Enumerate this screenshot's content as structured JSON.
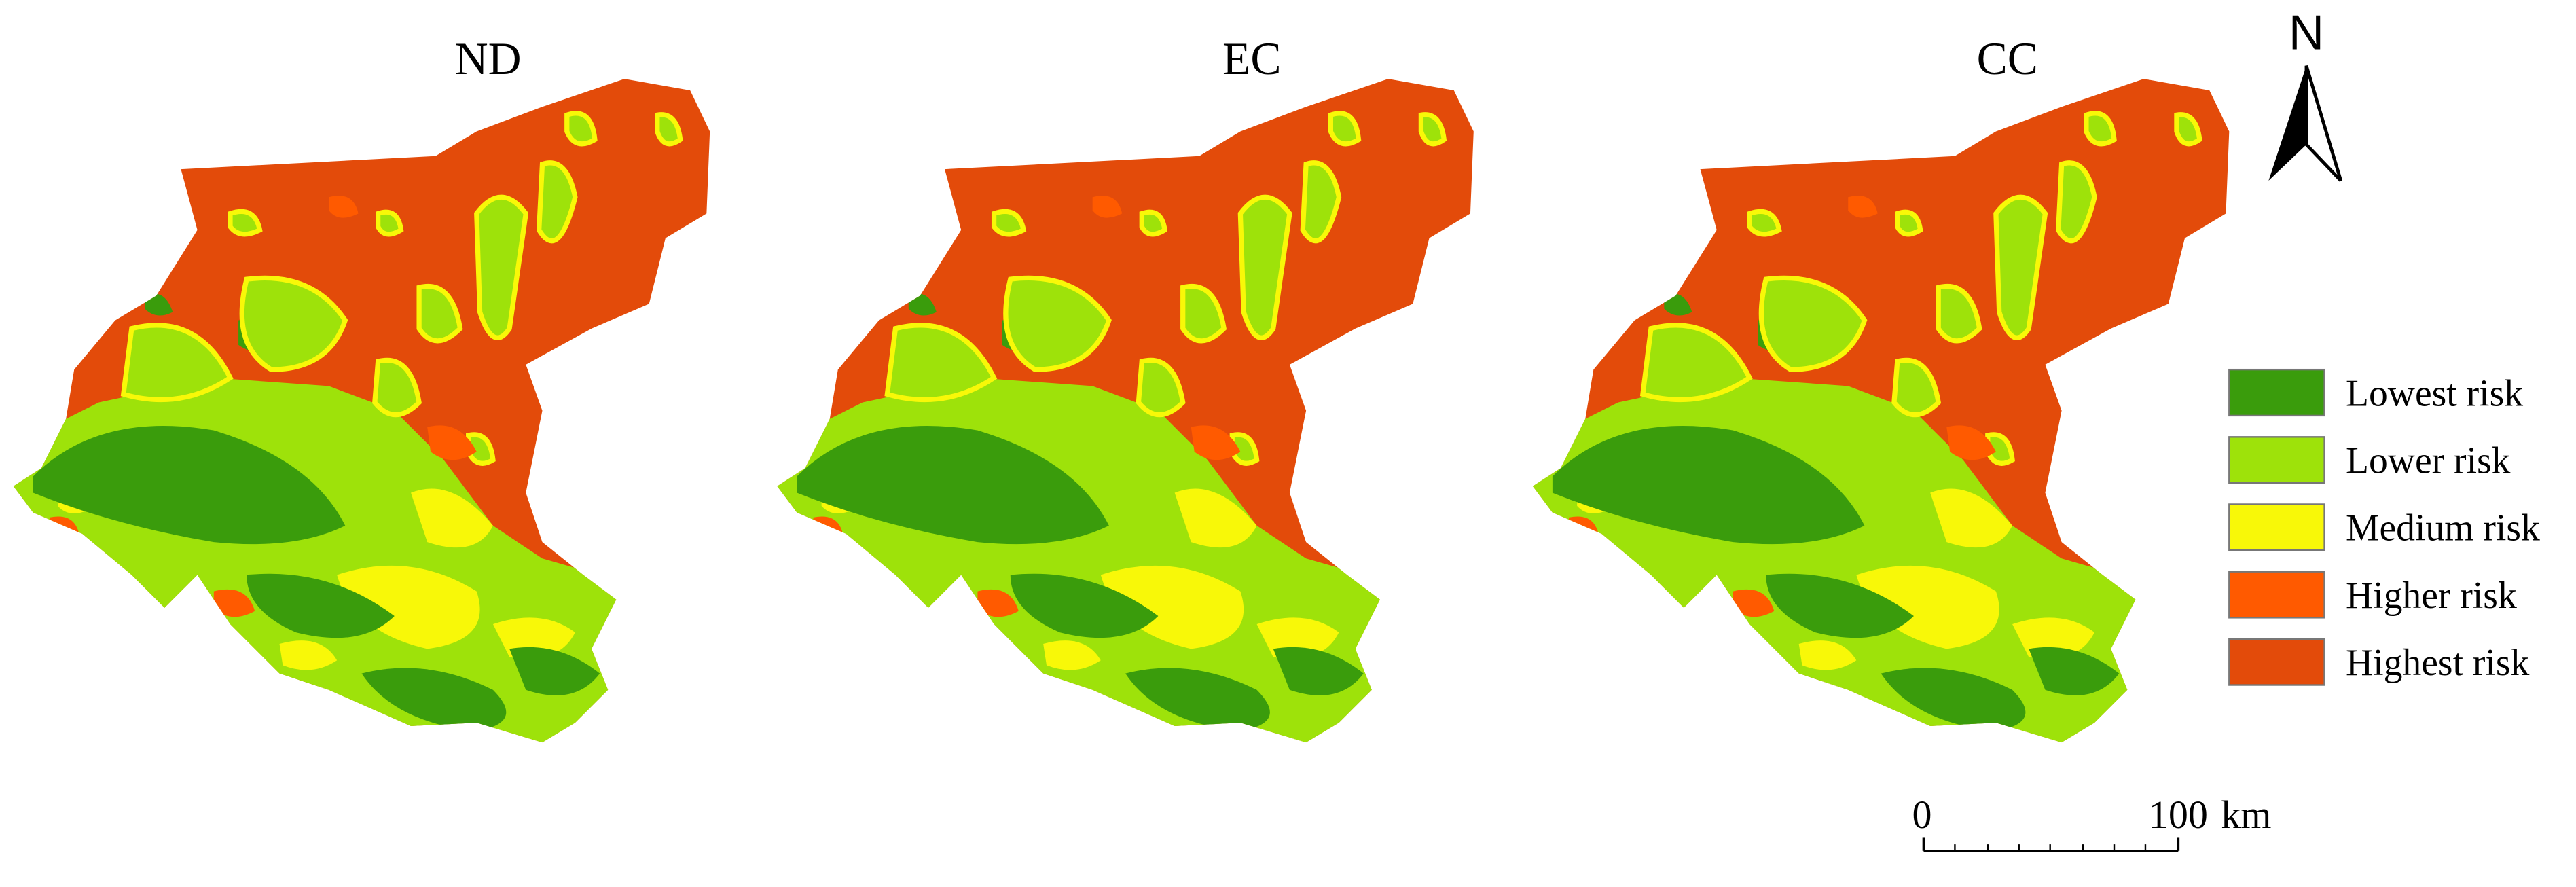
{
  "maps": [
    {
      "title": "ND"
    },
    {
      "title": "EC"
    },
    {
      "title": "CC"
    }
  ],
  "legend": [
    {
      "label": "Lowest risk",
      "color": "#3a9c0c"
    },
    {
      "label": "Lower risk",
      "color": "#9ee20a"
    },
    {
      "label": "Medium risk",
      "color": "#f8f808"
    },
    {
      "label": "Higher risk",
      "color": "#ff5a00"
    },
    {
      "label": "Highest risk",
      "color": "#e34b0a"
    }
  ],
  "north": "N",
  "scale_bar": {
    "start": "0",
    "end": "100",
    "unit": "km"
  }
}
